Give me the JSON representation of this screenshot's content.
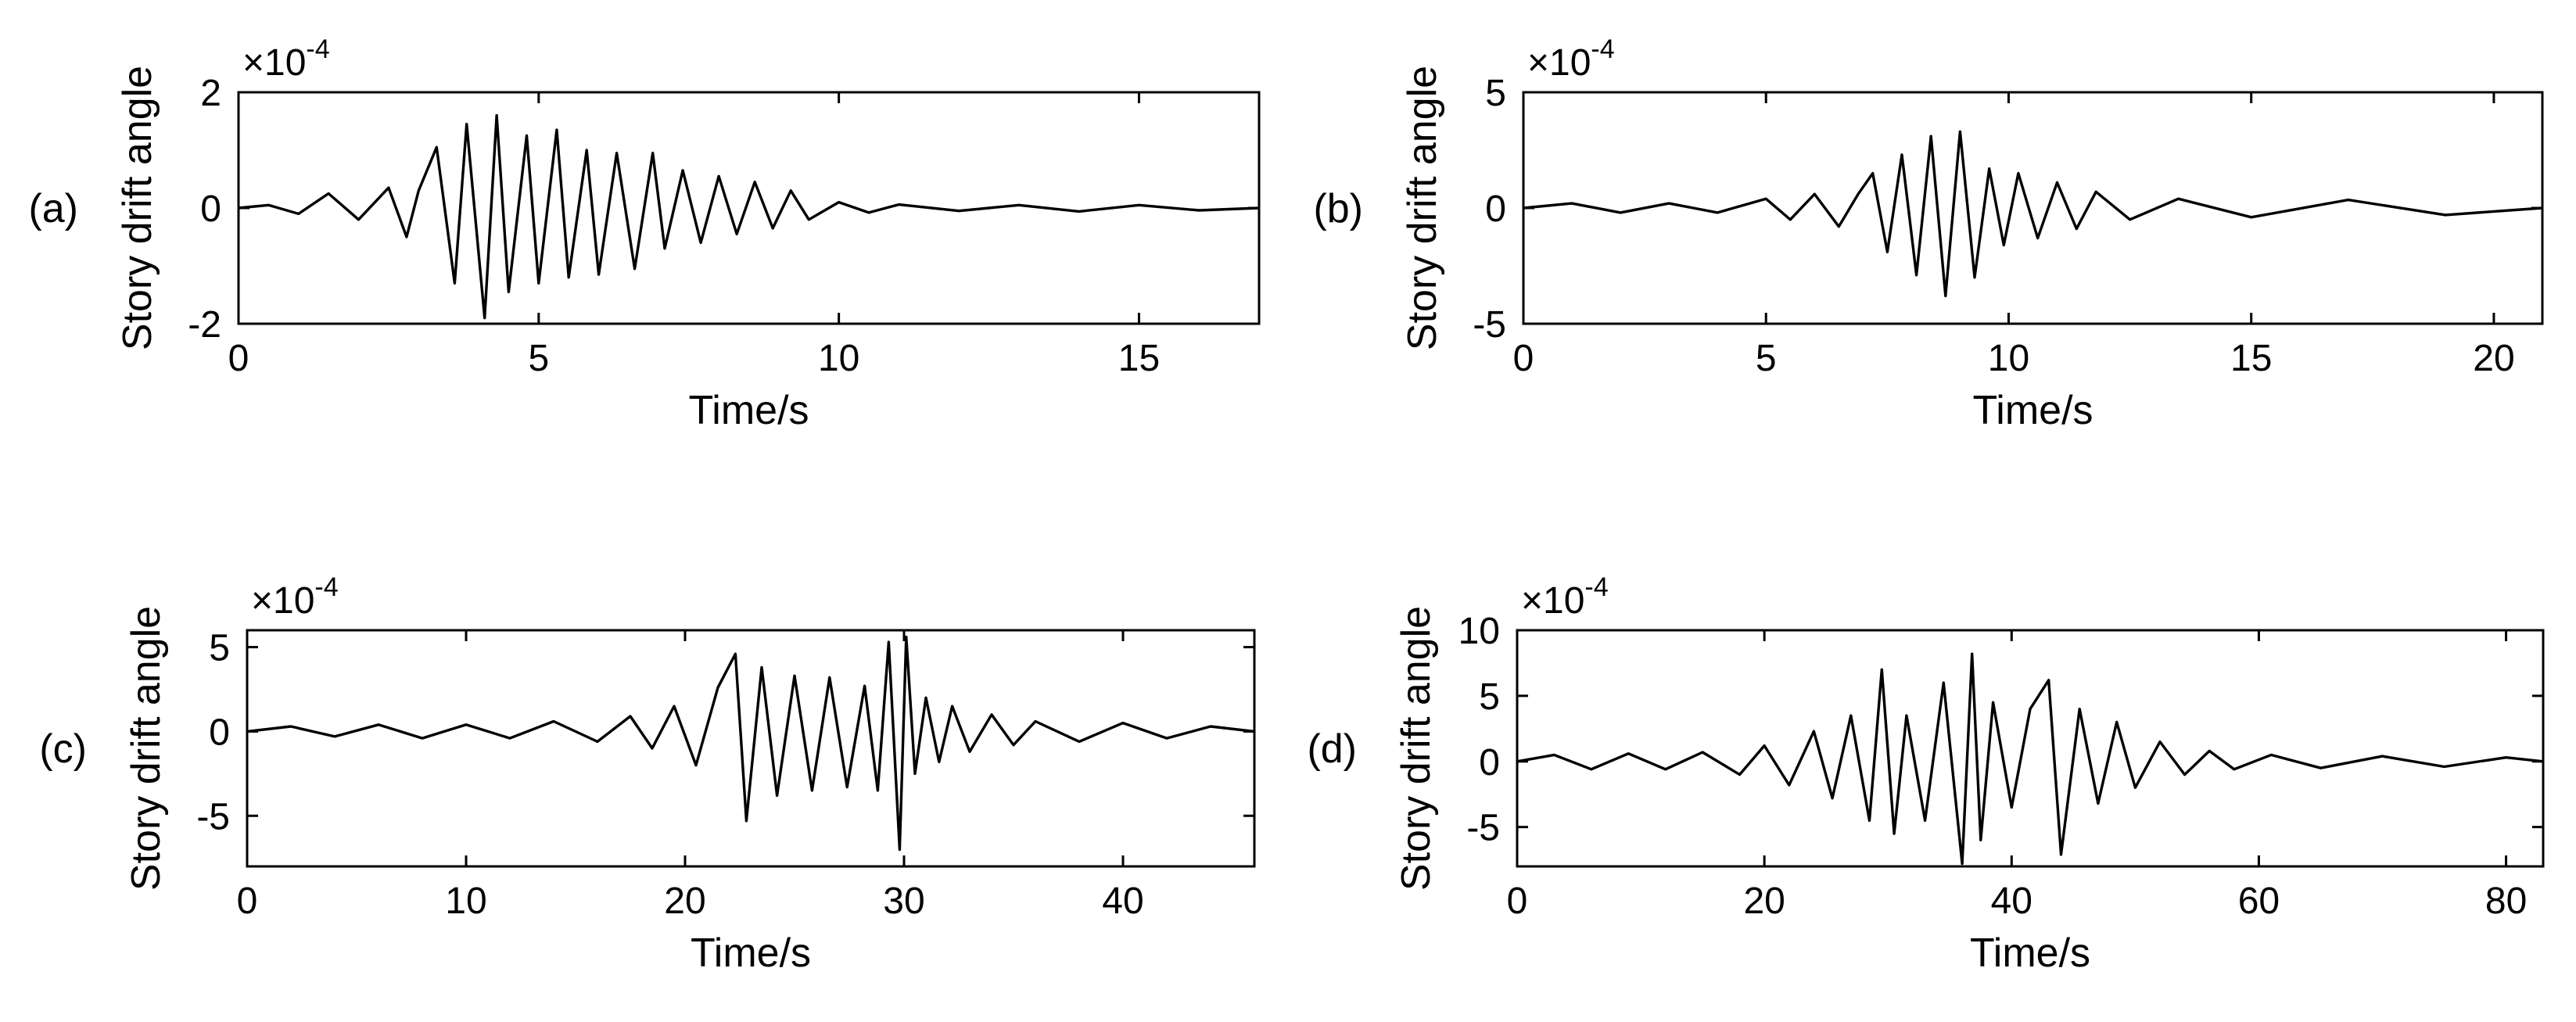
{
  "chart_data": [
    {
      "type": "line",
      "panel_label": "(a)",
      "xlabel": "Time/s",
      "ylabel": "Story drift angle",
      "y_multiplier": "×10",
      "y_exponent": "-4",
      "xlim": [
        0,
        17
      ],
      "ylim": [
        -2,
        2
      ],
      "xticks": [
        0,
        5,
        10,
        15
      ],
      "yticks": [
        -2,
        0,
        2
      ],
      "grid": false,
      "series": [
        {
          "x": [
            0,
            0.5,
            1.0,
            1.5,
            2.0,
            2.5,
            2.8,
            3.0,
            3.3,
            3.6,
            3.8,
            4.1,
            4.3,
            4.5,
            4.8,
            5.0,
            5.3,
            5.5,
            5.8,
            6.0,
            6.3,
            6.6,
            6.9,
            7.1,
            7.4,
            7.7,
            8.0,
            8.3,
            8.6,
            8.9,
            9.2,
            9.5,
            10.0,
            10.5,
            11.0,
            12.0,
            13.0,
            14.0,
            15.0,
            16.0,
            17.0
          ],
          "values": [
            0,
            0.05,
            -0.1,
            0.25,
            -0.2,
            0.35,
            -0.5,
            0.3,
            1.05,
            -1.3,
            1.45,
            -1.9,
            1.6,
            -1.45,
            1.25,
            -1.3,
            1.35,
            -1.2,
            1.0,
            -1.15,
            0.95,
            -1.05,
            0.95,
            -0.7,
            0.65,
            -0.6,
            0.55,
            -0.45,
            0.45,
            -0.35,
            0.3,
            -0.2,
            0.1,
            -0.08,
            0.06,
            -0.05,
            0.05,
            -0.06,
            0.05,
            -0.04,
            0
          ]
        }
      ]
    },
    {
      "type": "line",
      "panel_label": "(b)",
      "xlabel": "Time/s",
      "ylabel": "Story drift angle",
      "y_multiplier": "×10",
      "y_exponent": "-4",
      "xlim": [
        0,
        21
      ],
      "ylim": [
        -5,
        5
      ],
      "xticks": [
        0,
        5,
        10,
        15,
        20
      ],
      "yticks": [
        -5,
        0,
        5
      ],
      "grid": false,
      "series": [
        {
          "x": [
            0,
            1,
            2,
            3,
            4,
            5,
            5.5,
            6.0,
            6.5,
            6.9,
            7.2,
            7.5,
            7.8,
            8.1,
            8.4,
            8.7,
            9.0,
            9.3,
            9.6,
            9.9,
            10.2,
            10.6,
            11.0,
            11.4,
            11.8,
            12.5,
            13.5,
            15.0,
            17.0,
            19.0,
            21.0
          ],
          "values": [
            0,
            0.2,
            -0.2,
            0.2,
            -0.2,
            0.4,
            -0.5,
            0.6,
            -0.8,
            0.6,
            1.5,
            -1.9,
            2.3,
            -2.9,
            3.1,
            -3.8,
            3.3,
            -3.0,
            1.7,
            -1.6,
            1.5,
            -1.3,
            1.1,
            -0.9,
            0.7,
            -0.5,
            0.4,
            -0.4,
            0.35,
            -0.3,
            0
          ]
        }
      ]
    },
    {
      "type": "line",
      "panel_label": "(c)",
      "xlabel": "Time/s",
      "ylabel": "Story drift angle",
      "y_multiplier": "×10",
      "y_exponent": "-4",
      "xlim": [
        0,
        46
      ],
      "ylim": [
        -8,
        6
      ],
      "xticks": [
        0,
        10,
        20,
        30,
        40
      ],
      "yticks": [
        -5,
        0,
        5
      ],
      "grid": false,
      "series": [
        {
          "x": [
            0,
            2,
            4,
            6,
            8,
            10,
            12,
            14,
            16,
            17.5,
            18.5,
            19.5,
            20.5,
            21.5,
            22.3,
            22.8,
            23.5,
            24.2,
            25.0,
            25.8,
            26.6,
            27.4,
            28.2,
            28.8,
            29.3,
            29.8,
            30.1,
            30.5,
            31.0,
            31.6,
            32.2,
            33.0,
            34.0,
            35.0,
            36.0,
            38.0,
            40.0,
            42.0,
            44.0,
            46.0
          ],
          "values": [
            0,
            0.3,
            -0.3,
            0.4,
            -0.4,
            0.4,
            -0.4,
            0.6,
            -0.6,
            0.9,
            -1.0,
            1.5,
            -2.0,
            2.6,
            4.6,
            -5.3,
            3.8,
            -3.8,
            3.3,
            -3.5,
            3.2,
            -3.3,
            2.7,
            -3.5,
            5.3,
            -7.0,
            5.6,
            -2.5,
            2.0,
            -1.8,
            1.5,
            -1.2,
            1.0,
            -0.8,
            0.6,
            -0.6,
            0.5,
            -0.4,
            0.3,
            0
          ]
        }
      ]
    },
    {
      "type": "line",
      "panel_label": "(d)",
      "xlabel": "Time/s",
      "ylabel": "Story drift angle",
      "y_multiplier": "×10",
      "y_exponent": "-4",
      "xlim": [
        0,
        83
      ],
      "ylim": [
        -8,
        10
      ],
      "xticks": [
        0,
        20,
        40,
        60,
        80
      ],
      "yticks": [
        -5,
        0,
        5,
        10
      ],
      "grid": false,
      "series": [
        {
          "x": [
            0,
            3,
            6,
            9,
            12,
            15,
            18,
            20,
            22,
            24,
            25.5,
            27,
            28.5,
            29.5,
            30.5,
            31.5,
            33,
            34.5,
            36.0,
            36.8,
            37.5,
            38.5,
            40,
            41.5,
            43.0,
            44.0,
            45.5,
            47,
            48.5,
            50,
            52,
            54,
            56,
            58,
            61,
            65,
            70,
            75,
            80,
            83
          ],
          "values": [
            0,
            0.5,
            -0.6,
            0.6,
            -0.6,
            0.7,
            -1.0,
            1.2,
            -1.8,
            2.3,
            -2.8,
            3.5,
            -4.5,
            7.0,
            -5.5,
            3.5,
            -4.5,
            6.0,
            -7.8,
            8.2,
            -6.0,
            4.5,
            -3.5,
            4.0,
            6.2,
            -7.1,
            4.0,
            -3.2,
            3.0,
            -2.0,
            1.5,
            -1.0,
            0.8,
            -0.6,
            0.5,
            -0.5,
            0.4,
            -0.4,
            0.3,
            0
          ]
        }
      ]
    }
  ]
}
